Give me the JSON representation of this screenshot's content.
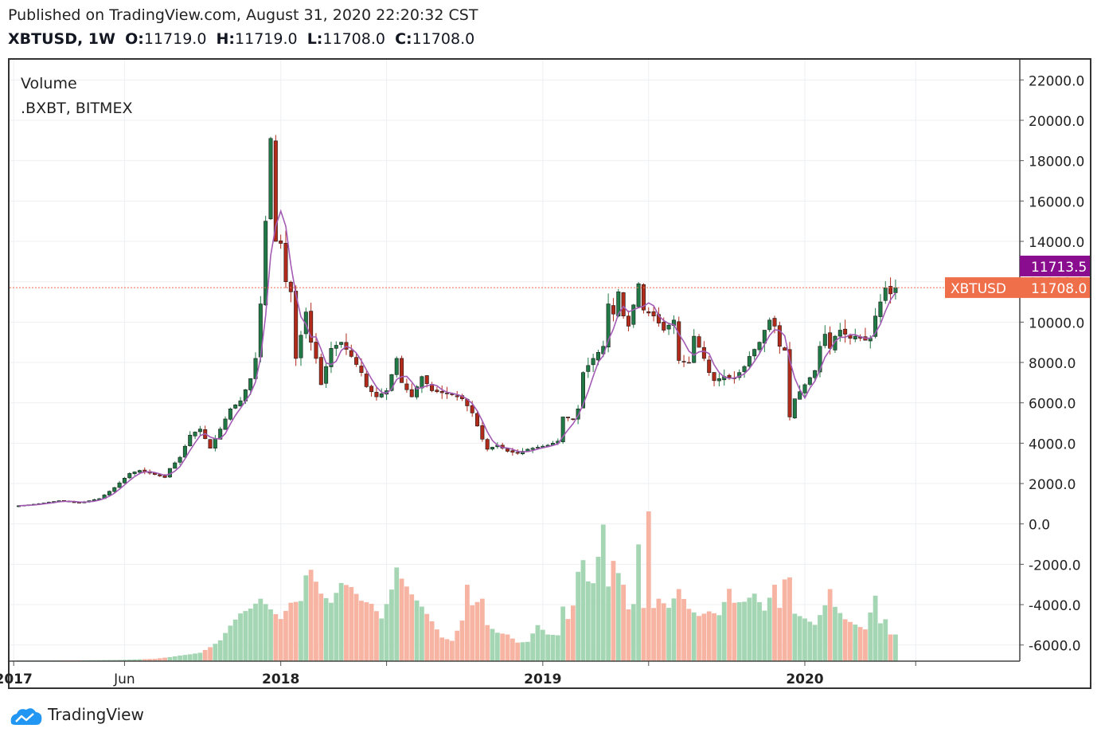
{
  "header": {
    "published": "Published on TradingView.com, August 31, 2020 22:20:32 CST",
    "symbol": "XBTUSD, 1W",
    "o_label": "O:",
    "o_value": "11719.0",
    "h_label": "H:",
    "h_value": "11719.0",
    "l_label": "L:",
    "l_value": "11708.0",
    "c_label": "C:",
    "c_value": "11708.0"
  },
  "legend": {
    "line1": "Volume",
    "line2": ".BXBT, BITMEX"
  },
  "footer": {
    "brand": "TradingView"
  },
  "colors": {
    "up": "#1f7a45",
    "down": "#b22a1a",
    "vol_up": "#a5d6b4",
    "vol_down": "#f7b4a2",
    "ma": "#a35bb4",
    "badge_purple": "#8a0d8f",
    "badge_orange": "#ef6f4a"
  },
  "chart_data": {
    "type": "candlestick",
    "interval": "1W",
    "ylim": [
      -6800,
      23000
    ],
    "y_ticks": [
      "22000.0",
      "20000.0",
      "18000.0",
      "16000.0",
      "14000.0",
      "12000.0",
      "10000.0",
      "8000.0",
      "6000.0",
      "4000.0",
      "2000.0",
      "0.0",
      "-2000.0",
      "-4000.0",
      "-6000.0"
    ],
    "y_tick_values": [
      22000,
      20000,
      18000,
      16000,
      14000,
      12000,
      10000,
      8000,
      6000,
      4000,
      2000,
      0,
      -2000,
      -4000,
      -6000
    ],
    "x_ticks": [
      {
        "label": "2017",
        "week": -1
      },
      {
        "label": "Jun",
        "week": 21
      },
      {
        "label": "2018",
        "week": 52
      },
      {
        "label": "2019",
        "week": 104
      },
      {
        "label": "2020",
        "week": 156
      }
    ],
    "x_minor_weeks": [
      73,
      125,
      178
    ],
    "last_price_label": "XBTUSD",
    "last_price_value": "11708.0",
    "last_price": 11708,
    "secondary_value": "11713.5",
    "secondary_price": 11713.5,
    "close_anchors": [
      [
        0,
        900
      ],
      [
        4,
        1000
      ],
      [
        8,
        1150
      ],
      [
        12,
        1050
      ],
      [
        16,
        1250
      ],
      [
        19,
        1800
      ],
      [
        22,
        2500
      ],
      [
        24,
        2650
      ],
      [
        27,
        2450
      ],
      [
        29,
        2300
      ],
      [
        30,
        2750
      ],
      [
        32,
        3300
      ],
      [
        34,
        4400
      ],
      [
        36,
        4700
      ],
      [
        38,
        3750
      ],
      [
        40,
        4700
      ],
      [
        42,
        5700
      ],
      [
        44,
        6100
      ],
      [
        46,
        7200
      ],
      [
        47,
        8200
      ],
      [
        48,
        10900
      ],
      [
        49,
        15000
      ],
      [
        50,
        19100
      ],
      [
        51,
        14000
      ],
      [
        52,
        13900
      ],
      [
        53,
        12000
      ],
      [
        54,
        11500
      ],
      [
        55,
        8200
      ],
      [
        57,
        10500
      ],
      [
        58,
        9000
      ],
      [
        59,
        8200
      ],
      [
        60,
        6900
      ],
      [
        62,
        8700
      ],
      [
        64,
        9000
      ],
      [
        66,
        8300
      ],
      [
        68,
        7500
      ],
      [
        69,
        6800
      ],
      [
        71,
        6300
      ],
      [
        73,
        6600
      ],
      [
        75,
        8200
      ],
      [
        76,
        7000
      ],
      [
        78,
        6300
      ],
      [
        80,
        7300
      ],
      [
        82,
        6600
      ],
      [
        84,
        6500
      ],
      [
        86,
        6400
      ],
      [
        88,
        6200
      ],
      [
        90,
        5500
      ],
      [
        92,
        4200
      ],
      [
        93,
        3700
      ],
      [
        95,
        3900
      ],
      [
        97,
        3600
      ],
      [
        99,
        3500
      ],
      [
        101,
        3700
      ],
      [
        103,
        3800
      ],
      [
        105,
        3900
      ],
      [
        107,
        4100
      ],
      [
        108,
        5300
      ],
      [
        110,
        5200
      ],
      [
        111,
        5700
      ],
      [
        112,
        7500
      ],
      [
        114,
        8200
      ],
      [
        116,
        8800
      ],
      [
        117,
        10900
      ],
      [
        118,
        10400
      ],
      [
        119,
        11500
      ],
      [
        120,
        10300
      ],
      [
        121,
        9800
      ],
      [
        123,
        11900
      ],
      [
        124,
        10600
      ],
      [
        126,
        10300
      ],
      [
        128,
        9600
      ],
      [
        130,
        10100
      ],
      [
        131,
        8100
      ],
      [
        133,
        8000
      ],
      [
        134,
        9300
      ],
      [
        136,
        8200
      ],
      [
        137,
        7500
      ],
      [
        138,
        7100
      ],
      [
        140,
        7300
      ],
      [
        142,
        7200
      ],
      [
        144,
        7800
      ],
      [
        145,
        8300
      ],
      [
        147,
        9000
      ],
      [
        148,
        9600
      ],
      [
        149,
        10100
      ],
      [
        150,
        9800
      ],
      [
        151,
        8800
      ],
      [
        152,
        8600
      ],
      [
        153,
        5300
      ],
      [
        154,
        6200
      ],
      [
        156,
        6900
      ],
      [
        158,
        7600
      ],
      [
        159,
        8800
      ],
      [
        160,
        9400
      ],
      [
        161,
        8700
      ],
      [
        162,
        9300
      ],
      [
        163,
        9600
      ],
      [
        165,
        9200
      ],
      [
        166,
        9300
      ],
      [
        167,
        9200
      ],
      [
        168,
        9100
      ],
      [
        169,
        9200
      ],
      [
        170,
        10300
      ],
      [
        171,
        11000
      ],
      [
        172,
        11700
      ],
      [
        173,
        11400
      ],
      [
        174,
        11708
      ]
    ],
    "volume_anchors": [
      [
        0,
        0.3
      ],
      [
        10,
        0.3
      ],
      [
        20,
        0.5
      ],
      [
        27,
        0.9
      ],
      [
        30,
        1.6
      ],
      [
        32,
        2.2
      ],
      [
        34,
        2.7
      ],
      [
        36,
        3.3
      ],
      [
        38,
        5.5
      ],
      [
        40,
        8.2
      ],
      [
        42,
        14
      ],
      [
        44,
        18.8
      ],
      [
        46,
        20.7
      ],
      [
        48,
        24.6
      ],
      [
        50,
        20.4
      ],
      [
        52,
        16.6
      ],
      [
        54,
        23
      ],
      [
        56,
        23.7
      ],
      [
        57,
        33.8
      ],
      [
        58,
        36
      ],
      [
        60,
        26.6
      ],
      [
        62,
        23
      ],
      [
        64,
        30.8
      ],
      [
        66,
        29.2
      ],
      [
        68,
        23.8
      ],
      [
        70,
        22.6
      ],
      [
        72,
        16.8
      ],
      [
        74,
        28.2
      ],
      [
        75,
        36.9
      ],
      [
        76,
        32.5
      ],
      [
        78,
        26.3
      ],
      [
        80,
        21.5
      ],
      [
        82,
        15.7
      ],
      [
        84,
        9.3
      ],
      [
        86,
        8
      ],
      [
        88,
        16
      ],
      [
        89,
        30.1
      ],
      [
        90,
        22
      ],
      [
        92,
        24.6
      ],
      [
        93,
        14.2
      ],
      [
        95,
        11.2
      ],
      [
        97,
        10.5
      ],
      [
        99,
        7.3
      ],
      [
        101,
        7.6
      ],
      [
        103,
        14.2
      ],
      [
        105,
        10.5
      ],
      [
        107,
        10.2
      ],
      [
        108,
        21.5
      ],
      [
        109,
        16.6
      ],
      [
        110,
        21.9
      ],
      [
        111,
        35.2
      ],
      [
        112,
        39.8
      ],
      [
        113,
        31.4
      ],
      [
        114,
        30.7
      ],
      [
        115,
        41.1
      ],
      [
        116,
        53.8
      ],
      [
        117,
        29.4
      ],
      [
        118,
        39.5
      ],
      [
        119,
        34.7
      ],
      [
        120,
        30.1
      ],
      [
        121,
        20.4
      ],
      [
        123,
        24.6
      ],
      [
        125,
        17.3
      ],
      [
        127,
        24.6
      ],
      [
        129,
        21
      ],
      [
        131,
        28.4
      ],
      [
        133,
        20.6
      ],
      [
        135,
        17.8
      ],
      [
        137,
        19.6
      ],
      [
        139,
        18.1
      ],
      [
        141,
        28.5
      ],
      [
        142,
        23
      ],
      [
        144,
        23.4
      ],
      [
        146,
        26.6
      ],
      [
        148,
        19.9
      ],
      [
        150,
        30.1
      ],
      [
        151,
        21
      ],
      [
        152,
        32.2
      ],
      [
        153,
        25.8
      ],
      [
        154,
        18.7
      ],
      [
        156,
        16.8
      ],
      [
        158,
        14.3
      ],
      [
        160,
        22
      ],
      [
        161,
        28.4
      ],
      [
        162,
        21.4
      ],
      [
        164,
        16.5
      ],
      [
        166,
        14.4
      ],
      [
        168,
        12.5
      ],
      [
        170,
        25.8
      ],
      [
        171,
        14.9
      ],
      [
        172,
        16.5
      ],
      [
        173,
        10.5
      ]
    ],
    "volume_spikes": [
      [
        123,
        46
      ],
      [
        125,
        59
      ],
      [
        153,
        33
      ]
    ]
  }
}
